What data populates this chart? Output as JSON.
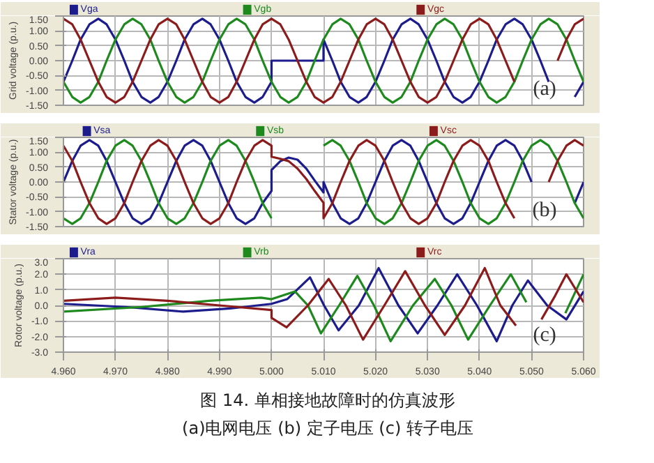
{
  "chart_data": [
    {
      "type": "line",
      "ylabel": "Grid voltage (p.u.)",
      "legend": "top",
      "grid": true,
      "tick_labels": "y",
      "annotations": [
        "(a)"
      ],
      "xlim": [
        4.96,
        5.06
      ],
      "ylim": [
        -1.5,
        1.5
      ],
      "xticks": [
        4.96,
        4.97,
        4.98,
        4.99,
        5.0,
        5.01,
        5.02,
        5.03,
        5.04,
        5.05,
        5.06
      ],
      "yticks": [
        {
          "value": -1.5,
          "label": "-1.50"
        },
        {
          "value": -1.0,
          "label": "-1.00"
        },
        {
          "value": -0.5,
          "label": "-0.50"
        },
        {
          "value": 0,
          "label": "0.00"
        },
        {
          "value": 0.5,
          "label": "0.50"
        },
        {
          "value": 1.0,
          "label": "1.00"
        },
        {
          "value": 1.5,
          "label": "1.50"
        }
      ],
      "x": [
        4.96,
        4.9617,
        4.9633,
        4.965,
        4.9667,
        4.9683,
        4.97,
        4.9717,
        4.9733,
        4.975,
        4.9767,
        4.9783,
        4.98,
        4.9817,
        4.9833,
        4.985,
        4.9867,
        4.9883,
        4.99,
        4.9917,
        4.9933,
        4.995,
        4.9967,
        4.9983,
        5.0,
        5.0017,
        5.0033,
        5.005,
        5.0067,
        5.0083,
        5.01,
        5.0117,
        5.0133,
        5.015,
        5.0167,
        5.0183,
        5.02,
        5.0217,
        5.0233,
        5.025,
        5.0267,
        5.0283,
        5.03,
        5.0317,
        5.0333,
        5.035,
        5.0367,
        5.0383,
        5.04,
        5.0417,
        5.0433,
        5.045,
        5.0467,
        5.0483,
        5.05,
        5.0517,
        5.0533,
        5.055,
        5.0567,
        5.0583,
        5.06
      ],
      "series": [
        {
          "name": "Vga",
          "color": "#1c1c8c",
          "x": [
            4.96,
            4.9617,
            4.9633,
            4.965,
            4.9667,
            4.9683,
            4.97,
            4.9717,
            4.9733,
            4.975,
            4.9767,
            4.9783,
            4.98,
            4.9817,
            4.9833,
            4.985,
            4.9867,
            4.9883,
            4.99,
            4.9917,
            4.9933,
            4.995,
            4.9967,
            4.9983,
            5.0,
            5.0,
            5.0017,
            5.0033,
            5.005,
            5.0067,
            5.0083,
            5.01,
            5.01,
            5.0117,
            5.0133,
            5.015,
            5.0167,
            5.0183,
            5.02,
            5.0217,
            5.0233,
            5.025,
            5.0267,
            5.0283,
            5.03,
            5.0317,
            5.0333,
            5.035,
            5.0367,
            5.0383,
            5.04,
            5.0417,
            5.0433,
            5.045,
            5.0467,
            5.0483,
            5.05,
            5.0517,
            5.0533,
            5.055,
            5.0567,
            5.0583,
            5.06
          ],
          "values": [
            -0.71,
            0,
            0.71,
            1.22,
            1.41,
            1.22,
            0.71,
            0,
            -0.71,
            -1.22,
            -1.41,
            -1.22,
            -0.71,
            0,
            0.71,
            1.22,
            1.41,
            1.22,
            0.71,
            0,
            -0.71,
            -1.22,
            -1.41,
            -1.22,
            -0.71,
            0,
            0,
            0,
            0,
            0,
            0,
            0,
            0.71,
            0,
            -0.71,
            -1.22,
            -1.41,
            -1.22,
            -0.71,
            0,
            0.71,
            1.22,
            1.41,
            1.22,
            0.71,
            0,
            -0.71,
            -1.22,
            -1.41,
            -1.22,
            -0.71,
            0,
            0.71,
            1.22,
            1.41,
            1.22,
            0.71,
            0,
            -0.71,
            null,
            null,
            -1.22,
            -0.71
          ]
        },
        {
          "name": "Vgb",
          "color": "#1e8a1e",
          "values": [
            -0.71,
            -1.22,
            -1.41,
            -1.22,
            -0.71,
            0,
            0.71,
            1.22,
            1.41,
            1.22,
            0.71,
            0,
            -0.71,
            -1.22,
            -1.41,
            -1.22,
            -0.71,
            0,
            0.71,
            1.22,
            1.41,
            1.22,
            0.71,
            0,
            -0.71,
            -1.22,
            -1.41,
            -1.22,
            -0.71,
            0,
            0.71,
            1.22,
            1.41,
            1.22,
            0.71,
            0,
            -0.71,
            -1.22,
            -1.41,
            -1.22,
            -0.71,
            0,
            0.71,
            1.22,
            1.41,
            1.22,
            0.71,
            0,
            -0.71,
            -1.22,
            -1.41,
            -1.22,
            -0.71,
            0,
            0.71,
            1.22,
            1.41,
            1.22,
            0.71,
            0,
            -0.71
          ]
        },
        {
          "name": "Vgc",
          "color": "#8c1c1c",
          "values": [
            1.41,
            1.22,
            0.71,
            0,
            -0.71,
            -1.22,
            -1.41,
            -1.22,
            -0.71,
            0,
            0.71,
            1.22,
            1.41,
            1.22,
            0.71,
            0,
            -0.71,
            -1.22,
            -1.41,
            -1.22,
            -0.71,
            0,
            0.71,
            1.22,
            1.41,
            1.22,
            0.71,
            0,
            -0.71,
            -1.22,
            -1.41,
            -1.22,
            -0.71,
            0,
            0.71,
            1.22,
            1.41,
            1.22,
            0.71,
            0,
            -0.71,
            -1.22,
            -1.41,
            -1.22,
            -0.71,
            0,
            0.71,
            1.22,
            1.41,
            1.22,
            0.71,
            0,
            -0.71,
            null,
            null,
            null,
            null,
            0,
            0.71,
            1.22,
            1.41
          ]
        }
      ]
    },
    {
      "type": "line",
      "ylabel": "Stator voltage (p.u.)",
      "legend": "top",
      "grid": true,
      "tick_labels": "y",
      "annotations": [
        "(b)"
      ],
      "xlim": [
        4.96,
        5.06
      ],
      "ylim": [
        -1.5,
        1.5
      ],
      "xticks": [
        4.96,
        4.97,
        4.98,
        4.99,
        5.0,
        5.01,
        5.02,
        5.03,
        5.04,
        5.05,
        5.06
      ],
      "yticks": [
        {
          "value": -1.5,
          "label": "-1.50"
        },
        {
          "value": -1.0,
          "label": "-1.00"
        },
        {
          "value": -0.5,
          "label": "-0.50"
        },
        {
          "value": 0,
          "label": "0.00"
        },
        {
          "value": 0.5,
          "label": "0.50"
        },
        {
          "value": 1.0,
          "label": "1.00"
        },
        {
          "value": 1.5,
          "label": "1.50"
        }
      ],
      "x": [
        4.96,
        4.9617,
        4.9633,
        4.965,
        4.9667,
        4.9683,
        4.97,
        4.9717,
        4.9733,
        4.975,
        4.9767,
        4.9783,
        4.98,
        4.9817,
        4.9833,
        4.985,
        4.9867,
        4.9883,
        4.99,
        4.9917,
        4.9933,
        4.995,
        4.9967,
        4.9983,
        5.0,
        5.0017,
        5.0033,
        5.005,
        5.0067,
        5.0083,
        5.01,
        5.0117,
        5.0133,
        5.015,
        5.0167,
        5.0183,
        5.02,
        5.0217,
        5.0233,
        5.025,
        5.0267,
        5.0283,
        5.03,
        5.0317,
        5.0333,
        5.035,
        5.0367,
        5.0383,
        5.04,
        5.0417,
        5.0433,
        5.045,
        5.0467,
        5.0483,
        5.05,
        5.0517,
        5.0533,
        5.055,
        5.0567,
        5.0583,
        5.06
      ],
      "series": [
        {
          "name": "Vsa",
          "color": "#1c1c8c",
          "x": [
            4.96,
            4.9617,
            4.9633,
            4.965,
            4.9667,
            4.9683,
            4.97,
            4.9717,
            4.9733,
            4.975,
            4.9767,
            4.9783,
            4.98,
            4.9817,
            4.9833,
            4.985,
            4.9867,
            4.9883,
            4.99,
            4.9917,
            4.9933,
            4.995,
            4.9967,
            4.9983,
            5.0,
            5.0,
            5.0017,
            5.0033,
            5.005,
            5.0067,
            5.0083,
            5.01,
            5.01,
            5.0117,
            5.0133,
            5.015,
            5.0167,
            5.0183,
            5.02,
            5.0217,
            5.0233,
            5.025,
            5.0267,
            5.0283,
            5.03,
            5.0317,
            5.0333,
            5.035,
            5.0367,
            5.0383,
            5.04,
            5.0417,
            5.0433,
            5.045,
            5.0467,
            5.0483,
            5.05,
            5.0517,
            5.0533,
            5.055,
            5.0567,
            5.0583,
            5.06
          ],
          "values": [
            0,
            0.71,
            1.22,
            1.41,
            1.22,
            0.71,
            0,
            -0.71,
            -1.22,
            -1.41,
            -1.22,
            -0.71,
            0,
            0.71,
            1.22,
            1.41,
            1.22,
            0.71,
            0,
            -0.71,
            -1.22,
            -1.41,
            -1.22,
            -0.71,
            -0.3,
            0.4,
            0.7,
            0.82,
            0.75,
            0.45,
            0.05,
            -0.35,
            0,
            -0.71,
            -1.22,
            -1.41,
            -1.22,
            -0.71,
            0,
            0.71,
            1.22,
            1.41,
            1.22,
            0.71,
            0,
            -0.71,
            -1.22,
            -1.41,
            -1.22,
            -0.71,
            0,
            0.71,
            1.22,
            1.41,
            1.22,
            0.71,
            0,
            null,
            null,
            null,
            null,
            -0.71,
            0
          ]
        },
        {
          "name": "Vsb",
          "color": "#1e8a1e",
          "values": [
            -1.22,
            -1.41,
            -1.22,
            -0.71,
            0,
            0.71,
            1.22,
            1.41,
            1.22,
            0.71,
            0,
            -0.71,
            -1.22,
            -1.41,
            -1.22,
            -0.71,
            0,
            0.71,
            1.22,
            1.41,
            1.22,
            0.71,
            0,
            -0.71,
            -1.22,
            null,
            null,
            null,
            null,
            null,
            1.22,
            1.41,
            1.22,
            0.71,
            0,
            -0.71,
            -1.22,
            -1.41,
            -1.22,
            -0.71,
            0,
            0.71,
            1.22,
            1.41,
            1.22,
            0.71,
            0,
            -0.71,
            -1.22,
            -1.41,
            -1.22,
            -0.71,
            0,
            0.71,
            1.22,
            1.41,
            1.22,
            0.71,
            0,
            -0.71,
            -1.22
          ]
        },
        {
          "name": "Vsc",
          "color": "#8c1c1c",
          "x": [
            4.96,
            4.9617,
            4.9633,
            4.965,
            4.9667,
            4.9683,
            4.97,
            4.9717,
            4.9733,
            4.975,
            4.9767,
            4.9783,
            4.98,
            4.9817,
            4.9833,
            4.985,
            4.9867,
            4.9883,
            4.99,
            4.9917,
            4.9933,
            4.995,
            4.9967,
            4.9983,
            5.0,
            5.0,
            5.0017,
            5.0033,
            5.005,
            5.0067,
            5.0083,
            5.01,
            5.01,
            5.0117,
            5.0133,
            5.015,
            5.0167,
            5.0183,
            5.02,
            5.0217,
            5.0233,
            5.025,
            5.0267,
            5.0283,
            5.03,
            5.0317,
            5.0333,
            5.035,
            5.0367,
            5.0383,
            5.04,
            5.0417,
            5.0433,
            5.045,
            5.0467,
            5.0483,
            5.05,
            5.0517,
            5.0533,
            5.055,
            5.0567,
            5.0583,
            5.06
          ],
          "values": [
            1.22,
            0.71,
            0,
            -0.71,
            -1.22,
            -1.41,
            -1.22,
            -0.71,
            0,
            0.71,
            1.22,
            1.41,
            1.22,
            0.71,
            0,
            -0.71,
            -1.22,
            -1.41,
            -1.22,
            -0.71,
            0,
            0.71,
            1.22,
            1.41,
            1.22,
            0.85,
            0.78,
            0.7,
            0.45,
            0.1,
            -0.3,
            -0.7,
            -1.22,
            -0.71,
            0,
            0.71,
            1.22,
            1.41,
            1.22,
            0.71,
            0,
            -0.71,
            -1.22,
            -1.41,
            -1.22,
            -0.71,
            0,
            0.71,
            1.22,
            1.41,
            1.22,
            0.71,
            0,
            -0.71,
            -1.22,
            null,
            null,
            null,
            0,
            0.71,
            1.22,
            1.41,
            1.22
          ]
        }
      ]
    },
    {
      "type": "line",
      "ylabel": "Rotor voltage (p.u.)",
      "legend": "top",
      "grid": true,
      "annotations": [
        "(c)"
      ],
      "xlim": [
        4.96,
        5.06
      ],
      "ylim": [
        -3,
        3
      ],
      "xticks": [
        {
          "value": 4.96,
          "label": "4.960"
        },
        {
          "value": 4.97,
          "label": "4.970"
        },
        {
          "value": 4.98,
          "label": "4.980"
        },
        {
          "value": 4.99,
          "label": "4.990"
        },
        {
          "value": 5.0,
          "label": "5.000"
        },
        {
          "value": 5.01,
          "label": "5.010"
        },
        {
          "value": 5.02,
          "label": "5.020"
        },
        {
          "value": 5.03,
          "label": "5.030"
        },
        {
          "value": 5.04,
          "label": "5.040"
        },
        {
          "value": 5.05,
          "label": "5.050"
        },
        {
          "value": 5.06,
          "label": "5.060"
        }
      ],
      "yticks": [
        {
          "value": -3,
          "label": "-3.0"
        },
        {
          "value": -2,
          "label": "-2.0"
        },
        {
          "value": -1,
          "label": "-1.0"
        },
        {
          "value": 0,
          "label": "0.0"
        },
        {
          "value": 1,
          "label": "1.0"
        },
        {
          "value": 2,
          "label": "2.0"
        },
        {
          "value": 3,
          "label": "3.0"
        }
      ],
      "series": [
        {
          "name": "Vra",
          "color": "#1c1c8c",
          "x": [
            4.96,
            4.972,
            4.983,
            4.992,
            5.0,
            5.003,
            5.0074,
            5.0101,
            5.0129,
            5.0168,
            5.0206,
            5.0244,
            5.0281,
            5.0319,
            5.0357,
            5.0395,
            5.0433,
            5.0463,
            5.0493,
            5.053,
            5.0567,
            5.06
          ],
          "values": [
            0.1,
            -0.1,
            -0.4,
            -0.2,
            0.1,
            0.4,
            1.8,
            0,
            -1.6,
            0,
            2.4,
            0,
            -1.8,
            0,
            2.0,
            0,
            -2.3,
            0,
            1.6,
            0,
            -0.9,
            0.9
          ]
        },
        {
          "name": "Vrb",
          "color": "#1e8a1e",
          "x": [
            4.96,
            4.975,
            4.988,
            4.998,
            5.0,
            5.0045,
            5.007,
            5.0095,
            5.013,
            5.0165,
            5.0197,
            5.0229,
            5.0272,
            5.0314,
            5.0346,
            5.0378,
            5.042,
            5.046,
            5.049,
            5.054,
            5.0565,
            5.06
          ],
          "values": [
            -0.4,
            -0.1,
            0.3,
            0.5,
            0.4,
            0.9,
            0,
            -1.8,
            0,
            1.9,
            0,
            -2.3,
            0,
            1.7,
            0,
            -2.2,
            0,
            2.0,
            0.2,
            null,
            -0.5,
            2.0
          ]
        },
        {
          "name": "Vrc",
          "color": "#8c1c1c",
          "x": [
            4.96,
            4.97,
            4.98,
            4.99,
            5.0,
            5.0,
            5.0029,
            5.007,
            5.011,
            5.0143,
            5.0176,
            5.0217,
            5.0257,
            5.0295,
            5.0333,
            5.0372,
            5.041,
            5.044,
            5.047,
            5.049,
            5.0519,
            5.0545,
            5.0567,
            5.06
          ],
          "values": [
            0.3,
            0.5,
            0.3,
            0.0,
            -0.3,
            -0.8,
            -1.4,
            0,
            1.7,
            0,
            -2.2,
            0,
            2.2,
            0,
            -1.9,
            0,
            2.4,
            0,
            -1.3,
            null,
            -0.9,
            0.6,
            2.0,
            0.2
          ]
        }
      ]
    },
    {
      "type": "other",
      "title": "图 14. 单相接地故障时的仿真波形",
      "subtitle": "(a)电网电压 (b) 定子电压 (c) 转子电压"
    }
  ]
}
